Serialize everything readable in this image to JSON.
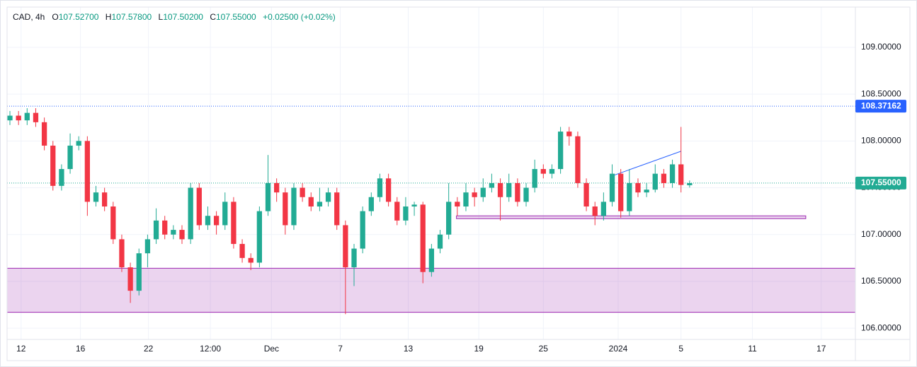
{
  "chart_data": {
    "type": "candlestick",
    "header": {
      "symbol": "CAD, 4h",
      "ohlc": [
        {
          "label": "O",
          "value": "107.52700"
        },
        {
          "label": "H",
          "value": "107.57800"
        },
        {
          "label": "L",
          "value": "107.50200"
        },
        {
          "label": "C",
          "value": "107.55000"
        }
      ],
      "change": "+0.02500 (+0.02%)"
    },
    "series": {
      "open": [
        108.22,
        108.27,
        108.22,
        108.3,
        108.2,
        107.95,
        107.52,
        107.7,
        107.95,
        108.0,
        107.35,
        107.45,
        107.3,
        106.95,
        106.65,
        106.4,
        106.8,
        106.95,
        107.15,
        107.0,
        107.05,
        106.95,
        107.5,
        107.1,
        107.2,
        107.1,
        107.35,
        106.9,
        106.75,
        106.7,
        107.25,
        107.55,
        107.45,
        107.1,
        107.5,
        107.4,
        107.3,
        107.35,
        107.45,
        107.1,
        106.65,
        106.85,
        107.25,
        107.4,
        107.6,
        107.35,
        107.15,
        107.3,
        107.32,
        106.6,
        106.85,
        107.0,
        107.35,
        107.3,
        107.45,
        107.4,
        107.5,
        107.55,
        107.4,
        107.55,
        107.35,
        107.5,
        107.7,
        107.65,
        107.7,
        108.1,
        108.05,
        107.55,
        107.3,
        107.2,
        107.35,
        107.65,
        107.25,
        107.55,
        107.45,
        107.48,
        107.65,
        107.55,
        107.75,
        107.527
      ],
      "high": [
        108.32,
        108.32,
        108.35,
        108.35,
        108.25,
        108.0,
        107.75,
        108.08,
        108.05,
        108.05,
        107.52,
        107.5,
        107.35,
        107.0,
        106.7,
        106.85,
        107.0,
        107.28,
        107.2,
        107.1,
        107.1,
        107.55,
        107.55,
        107.3,
        107.25,
        107.45,
        107.4,
        106.95,
        106.8,
        107.3,
        107.85,
        107.6,
        107.5,
        107.55,
        107.55,
        107.45,
        107.5,
        107.5,
        107.5,
        107.15,
        106.9,
        107.3,
        107.45,
        107.65,
        107.65,
        107.4,
        107.4,
        107.35,
        107.35,
        106.9,
        107.05,
        107.55,
        107.4,
        107.55,
        107.5,
        107.6,
        107.65,
        107.6,
        107.65,
        107.6,
        107.55,
        107.8,
        107.75,
        107.75,
        108.15,
        108.15,
        108.1,
        107.6,
        107.35,
        107.45,
        107.75,
        107.7,
        107.7,
        107.6,
        107.55,
        107.75,
        107.7,
        107.8,
        108.15,
        107.578
      ],
      "low": [
        108.17,
        108.17,
        108.17,
        108.15,
        107.9,
        107.47,
        107.47,
        107.65,
        107.9,
        107.2,
        107.3,
        107.25,
        106.9,
        106.6,
        106.27,
        106.35,
        106.65,
        106.9,
        106.95,
        106.95,
        106.9,
        106.9,
        107.05,
        107.05,
        107.0,
        107.05,
        106.85,
        106.7,
        106.62,
        106.65,
        107.2,
        107.35,
        107.0,
        107.05,
        107.35,
        107.25,
        107.25,
        107.3,
        107.05,
        106.15,
        106.45,
        106.8,
        107.2,
        107.35,
        107.3,
        107.1,
        107.1,
        107.2,
        106.48,
        106.55,
        106.8,
        106.95,
        107.2,
        107.25,
        107.3,
        107.35,
        107.45,
        107.15,
        107.35,
        107.3,
        107.3,
        107.45,
        107.6,
        107.6,
        107.65,
        107.95,
        107.5,
        107.25,
        107.1,
        107.15,
        107.3,
        107.18,
        107.2,
        107.4,
        107.4,
        107.45,
        107.5,
        107.5,
        107.45,
        107.502
      ],
      "close": [
        108.27,
        108.22,
        108.3,
        108.2,
        107.95,
        107.52,
        107.7,
        107.95,
        108.0,
        107.35,
        107.45,
        107.3,
        106.95,
        106.65,
        106.4,
        106.8,
        106.95,
        107.15,
        107.0,
        107.05,
        106.95,
        107.5,
        107.1,
        107.2,
        107.1,
        107.35,
        106.9,
        106.75,
        106.7,
        107.25,
        107.55,
        107.45,
        107.1,
        107.5,
        107.4,
        107.3,
        107.35,
        107.45,
        107.1,
        106.65,
        106.85,
        107.25,
        107.4,
        107.6,
        107.35,
        107.15,
        107.3,
        107.32,
        106.6,
        106.85,
        107.0,
        107.35,
        107.3,
        107.45,
        107.4,
        107.5,
        107.55,
        107.4,
        107.55,
        107.35,
        107.5,
        107.7,
        107.65,
        107.7,
        108.1,
        108.05,
        107.55,
        107.3,
        107.2,
        107.35,
        107.65,
        107.25,
        107.55,
        107.45,
        107.48,
        107.65,
        107.55,
        107.75,
        107.53,
        107.55
      ],
      "up_color": "#22ab94",
      "down_color": "#f23645"
    },
    "xlim": [
      -0.33,
      98.27
    ],
    "xticks": [
      {
        "value": 1.3,
        "label": "12"
      },
      {
        "value": 8.2,
        "label": "16"
      },
      {
        "value": 16.1,
        "label": "22"
      },
      {
        "value": 23.3,
        "label": "12:00"
      },
      {
        "value": 30.4,
        "label": "Dec"
      },
      {
        "value": 38.4,
        "label": "7"
      },
      {
        "value": 46.3,
        "label": "13"
      },
      {
        "value": 54.5,
        "label": "19"
      },
      {
        "value": 62.0,
        "label": "25"
      },
      {
        "value": 70.7,
        "label": "2024"
      },
      {
        "value": 78.0,
        "label": "5"
      },
      {
        "value": 86.3,
        "label": "11"
      },
      {
        "value": 94.3,
        "label": "17"
      }
    ],
    "ylim": [
      105.88,
      109.43
    ],
    "yticks": [
      {
        "value": 106,
        "label": "106.00000"
      },
      {
        "value": 106.5,
        "label": "106.50000"
      },
      {
        "value": 107,
        "label": "107.00000"
      },
      {
        "value": 107.5,
        "label": "107.50000"
      },
      {
        "value": 108,
        "label": "108.00000"
      },
      {
        "value": 108.5,
        "label": "108.50000"
      },
      {
        "value": 109,
        "label": "109.00000"
      }
    ],
    "grid": true,
    "hlines": [
      {
        "value": 108.37162,
        "label": "108.37162",
        "color": "#2962ff"
      },
      {
        "value": 107.55,
        "label": "107.55000",
        "color": "#22ab94"
      }
    ],
    "zone": {
      "from": 106.17,
      "to": 106.64,
      "color": "#9c27b0"
    },
    "box": {
      "x0": 51.9,
      "x1": 92.5,
      "y0": 107.17,
      "y1": 107.2,
      "color": "#9c27b0"
    },
    "trendline": {
      "x0": 70.1,
      "y0": 107.63,
      "x1": 78.0,
      "y1": 107.89,
      "color": "#2962ff"
    }
  }
}
